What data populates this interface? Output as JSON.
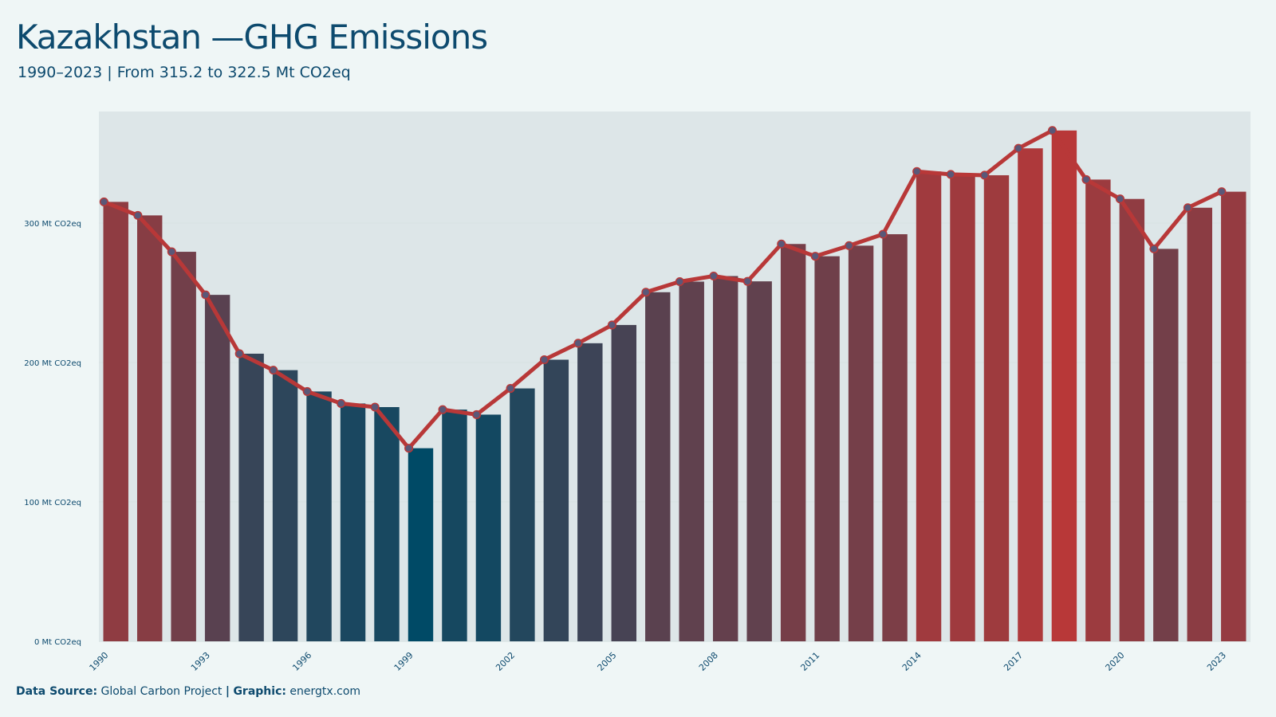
{
  "header": {
    "title": "Kazakhstan —GHG Emissions",
    "subtitle": "1990–2023 | From 315.2 to 322.5 Mt CO2eq"
  },
  "footer": {
    "source_label": "Data Source:",
    "source_value": "Global Carbon Project",
    "separator": "|",
    "graphic_label": "Graphic:",
    "graphic_value": "energtx.com"
  },
  "chart_data": {
    "type": "bar",
    "unit": "Mt CO2eq",
    "categories": [
      "1990",
      "1991",
      "1992",
      "1993",
      "1994",
      "1995",
      "1996",
      "1997",
      "1998",
      "1999",
      "2000",
      "2001",
      "2002",
      "2003",
      "2004",
      "2005",
      "2006",
      "2007",
      "2008",
      "2009",
      "2010",
      "2011",
      "2012",
      "2013",
      "2014",
      "2015",
      "2016",
      "2017",
      "2018",
      "2019",
      "2020",
      "2021",
      "2022",
      "2023"
    ],
    "values": [
      315.2,
      305.5,
      279.4,
      248.5,
      206.3,
      194.5,
      179.2,
      170.6,
      168.0,
      138.5,
      166.2,
      162.6,
      181.4,
      202.0,
      213.8,
      226.9,
      250.4,
      258.0,
      262.0,
      258.2,
      285.0,
      276.2,
      283.8,
      292.0,
      337.0,
      334.9,
      334.3,
      353.6,
      366.4,
      331.2,
      317.3,
      281.5,
      311.0,
      322.5
    ],
    "line_overlay": true,
    "ylim": [
      0,
      380
    ],
    "yticks": [
      0,
      100,
      200,
      300
    ],
    "ytick_labels": [
      "0 Mt CO2eq",
      "100 Mt CO2eq",
      "200 Mt CO2eq",
      "300 Mt CO2eq"
    ],
    "xtick_labels": [
      "1990",
      "1993",
      "1996",
      "1999",
      "2002",
      "2005",
      "2008",
      "2011",
      "2014",
      "2017",
      "2020",
      "2023"
    ],
    "grid": true,
    "colors": {
      "low": "#004a66",
      "high": "#b83838",
      "line": "#b83838",
      "marker": "#5a5878",
      "grid": "#d8e2e3",
      "plot_bg": "#dde6e8"
    }
  }
}
